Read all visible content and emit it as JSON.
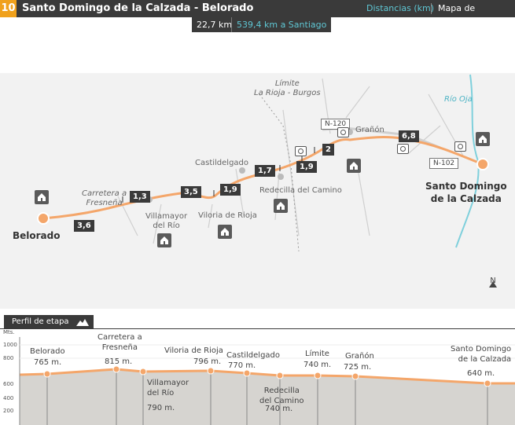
{
  "header": {
    "stage_number": "10",
    "title": "Santo Domingo de la Calzada - Belorado",
    "distances_label": "Distancias (km)",
    "map_label": "Mapa de situación"
  },
  "stage_info": {
    "distance": "22,7 km",
    "to_santiago": "539,4 km a Santiago"
  },
  "map": {
    "places": {
      "belorado": "Belorado",
      "santo_domingo": "Santo Domingo\nde la Calzada",
      "carretera": "Carretera a\nFresneña",
      "villamayor": "Villamayor\ndel Río",
      "viloria": "Viloria de Rioja",
      "castildelgado": "Castildelgado",
      "redecilla": "Redecilla del Camino",
      "granon": "Grañón",
      "limite": "Límite\nLa Rioja - Burgos",
      "rio_oja": "Río Oja"
    },
    "roads": {
      "n120": "N-120",
      "n102": "N-102"
    },
    "segments": [
      "3,6",
      "1,3",
      "3,5",
      "1,9",
      "1,7",
      "1,9",
      "2",
      "6,8"
    ],
    "north": "N",
    "colors": {
      "route": "#f4a66a",
      "river": "#7fd0dc",
      "dark": "#3a3a3a",
      "accent": "#f0a11c"
    }
  },
  "profile": {
    "tab_label": "Perfil de etapa",
    "y_unit": "Mts.",
    "y_ticks": [
      "1000",
      "800",
      "600",
      "400",
      "200"
    ],
    "points": [
      {
        "name": "Belorado",
        "alt": "765 m."
      },
      {
        "name": "Carretera a\nFresneña",
        "alt": "815 m."
      },
      {
        "name": "Villamayor\ndel Río",
        "alt": "790 m."
      },
      {
        "name": "Viloria de Rioja",
        "alt": "796 m."
      },
      {
        "name": "Castildelgado",
        "alt": "770 m."
      },
      {
        "name": "Redecilla\ndel Camino",
        "alt": "740 m."
      },
      {
        "name": "Límite",
        "alt": "740 m."
      },
      {
        "name": "Grañón",
        "alt": "725 m."
      },
      {
        "name": "Santo Domingo\nde la Calzada",
        "alt": "640 m."
      }
    ]
  }
}
